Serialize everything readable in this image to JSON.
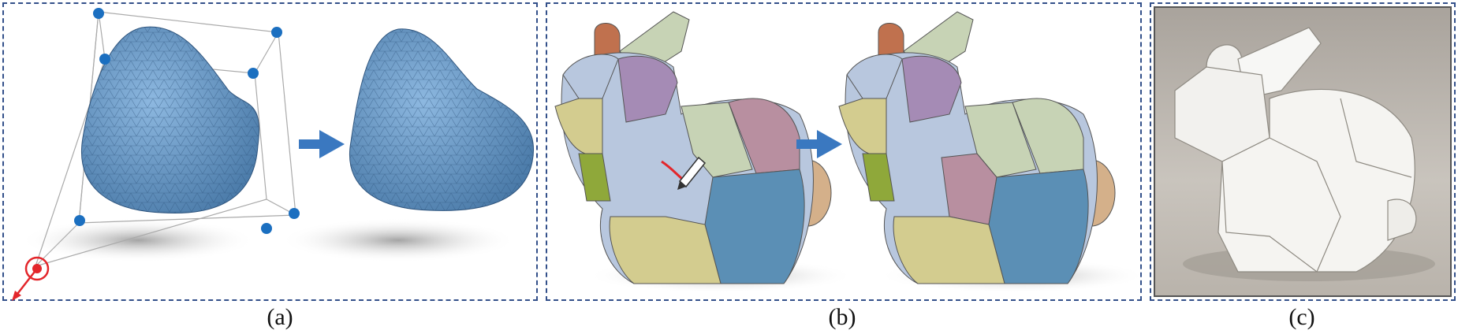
{
  "figure": {
    "panels": [
      {
        "id": "a",
        "label": "(a)"
      },
      {
        "id": "b",
        "label": "(b)"
      },
      {
        "id": "c",
        "label": "(c)"
      }
    ]
  },
  "colors": {
    "frame": "#33508a",
    "mesh_blue": "#6e9cc9",
    "arrow_blue": "#3a78c0",
    "control_point": "#1b6fc0",
    "handle_red": "#e3262b",
    "patch_purple": "#a58bb5",
    "patch_sage": "#c7d3b5",
    "patch_olive": "#8fa83a",
    "patch_khaki": "#d3cc8f",
    "patch_lightblue": "#b8c7de",
    "patch_steelblue": "#5b8fb5",
    "patch_mauve": "#b88fa0",
    "ear_tan": "#d4b08a",
    "paper_bg": "#bdb7ae"
  }
}
